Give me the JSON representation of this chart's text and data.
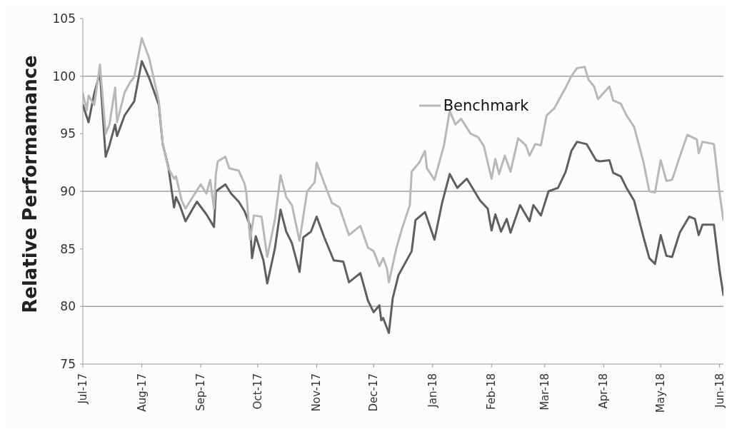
{
  "chart_data": {
    "type": "line",
    "ylabel": "Relative Performamance",
    "xlim": [
      "2017-07-01",
      "2018-06-03"
    ],
    "ylim": [
      75,
      105
    ],
    "yticks": [
      75,
      80,
      85,
      90,
      95,
      100,
      105
    ],
    "xticks": [
      {
        "value": "2017-07-01",
        "label": "Jul-17"
      },
      {
        "value": "2017-08-01",
        "label": "Aug-17"
      },
      {
        "value": "2017-09-01",
        "label": "Sep-17"
      },
      {
        "value": "2017-10-01",
        "label": "Oct-17"
      },
      {
        "value": "2017-11-01",
        "label": "Nov-17"
      },
      {
        "value": "2017-12-01",
        "label": "Dec-17"
      },
      {
        "value": "2018-01-01",
        "label": "Jan-18"
      },
      {
        "value": "2018-02-01",
        "label": "Feb-18"
      },
      {
        "value": "2018-03-01",
        "label": "Mar-18"
      },
      {
        "value": "2018-04-01",
        "label": "Apr-18"
      },
      {
        "value": "2018-05-01",
        "label": "May-18"
      },
      {
        "value": "2018-06-01",
        "label": "Jun-18"
      }
    ],
    "ref_lines": [
      {
        "axis": "y",
        "value": 80,
        "color": "#a0a0a0"
      },
      {
        "axis": "y",
        "value": 90,
        "color": "#a0a0a0"
      },
      {
        "axis": "y",
        "value": 100,
        "color": "#a0a0a0"
      }
    ],
    "legend": "top",
    "marker": "none",
    "line_style": "solid",
    "series": [
      {
        "color": "#5f5f5f",
        "x": [
          "2017-07-01",
          "2017-07-04",
          "2017-07-07",
          "2017-07-10",
          "2017-07-13",
          "2017-07-15",
          "2017-07-18",
          "2017-07-19",
          "2017-07-23",
          "2017-07-28",
          "2017-08-01",
          "2017-08-05",
          "2017-08-10",
          "2017-08-12",
          "2017-08-15",
          "2017-08-18",
          "2017-08-19",
          "2017-08-21",
          "2017-08-24",
          "2017-08-30",
          "2017-09-04",
          "2017-09-08",
          "2017-09-09",
          "2017-09-14",
          "2017-09-17",
          "2017-09-21",
          "2017-09-24",
          "2017-09-27",
          "2017-09-28",
          "2017-09-30",
          "2017-10-04",
          "2017-10-06",
          "2017-10-10",
          "2017-10-13",
          "2017-10-16",
          "2017-10-19",
          "2017-10-23",
          "2017-10-25",
          "2017-10-29",
          "2017-11-01",
          "2017-11-05",
          "2017-11-10",
          "2017-11-15",
          "2017-11-18",
          "2017-11-24",
          "2017-11-28",
          "2017-12-01",
          "2017-12-04",
          "2017-12-05",
          "2017-12-06",
          "2017-12-09",
          "2017-12-11",
          "2017-12-14",
          "2017-12-21",
          "2017-12-23",
          "2017-12-28",
          "2018-01-02",
          "2018-01-06",
          "2018-01-10",
          "2018-01-14",
          "2018-01-19",
          "2018-01-26",
          "2018-01-30",
          "2018-02-01",
          "2018-02-03",
          "2018-02-06",
          "2018-02-09",
          "2018-02-11",
          "2018-02-16",
          "2018-02-21",
          "2018-02-23",
          "2018-02-27",
          "2018-03-03",
          "2018-03-08",
          "2018-03-12",
          "2018-03-15",
          "2018-03-18",
          "2018-03-23",
          "2018-03-28",
          "2018-03-30",
          "2018-04-04",
          "2018-04-06",
          "2018-04-10",
          "2018-04-13",
          "2018-04-17",
          "2018-04-22",
          "2018-04-25",
          "2018-04-28",
          "2018-05-01",
          "2018-05-04",
          "2018-05-07",
          "2018-05-11",
          "2018-05-16",
          "2018-05-19",
          "2018-05-21",
          "2018-05-23",
          "2018-05-29",
          "2018-06-01",
          "2018-06-03"
        ],
        "values": [
          97.5,
          96.0,
          98.5,
          100.3,
          93.0,
          94.0,
          95.8,
          94.8,
          96.6,
          97.8,
          101.3,
          99.8,
          97.5,
          94.1,
          92.1,
          88.6,
          89.5,
          88.8,
          87.4,
          89.1,
          88.0,
          86.9,
          90.0,
          90.6,
          89.8,
          89.1,
          88.3,
          87.0,
          84.2,
          86.1,
          84.0,
          82.0,
          85.0,
          88.4,
          86.5,
          85.5,
          83.0,
          86.0,
          86.5,
          87.8,
          86.0,
          84.0,
          83.9,
          82.1,
          82.9,
          80.5,
          79.5,
          80.1,
          78.8,
          79.0,
          77.7,
          80.7,
          82.7,
          84.8,
          87.5,
          88.2,
          85.8,
          89.0,
          91.5,
          90.3,
          91.1,
          89.2,
          88.5,
          86.6,
          88.0,
          86.5,
          87.6,
          86.4,
          88.8,
          87.4,
          88.8,
          87.9,
          90.0,
          90.3,
          91.7,
          93.5,
          94.3,
          94.1,
          92.7,
          92.6,
          92.7,
          91.6,
          91.3,
          90.3,
          89.2,
          86.0,
          84.2,
          83.7,
          86.2,
          84.4,
          84.3,
          86.4,
          87.8,
          87.6,
          86.2,
          87.1,
          87.1,
          83.1,
          81.0
        ]
      },
      {
        "name": "Benchmark",
        "color": "#b8b8b8",
        "x": [
          "2017-07-01",
          "2017-07-03",
          "2017-07-04",
          "2017-07-07",
          "2017-07-10",
          "2017-07-13",
          "2017-07-15",
          "2017-07-18",
          "2017-07-19",
          "2017-07-23",
          "2017-07-26",
          "2017-07-28",
          "2017-08-01",
          "2017-08-05",
          "2017-08-10",
          "2017-08-12",
          "2017-08-15",
          "2017-08-18",
          "2017-08-19",
          "2017-08-22",
          "2017-08-24",
          "2017-09-01",
          "2017-09-04",
          "2017-09-06",
          "2017-09-08",
          "2017-09-09",
          "2017-09-10",
          "2017-09-14",
          "2017-09-16",
          "2017-09-21",
          "2017-09-24",
          "2017-09-25",
          "2017-09-27",
          "2017-09-29",
          "2017-10-03",
          "2017-10-06",
          "2017-10-10",
          "2017-10-13",
          "2017-10-16",
          "2017-10-19",
          "2017-10-23",
          "2017-10-27",
          "2017-10-31",
          "2017-11-01",
          "2017-11-05",
          "2017-11-09",
          "2017-11-13",
          "2017-11-18",
          "2017-11-24",
          "2017-11-28",
          "2017-12-01",
          "2017-12-04",
          "2017-12-06",
          "2017-12-08",
          "2017-12-09",
          "2017-12-13",
          "2017-12-16",
          "2017-12-20",
          "2017-12-21",
          "2017-12-25",
          "2017-12-28",
          "2017-12-29",
          "2018-01-02",
          "2018-01-07",
          "2018-01-10",
          "2018-01-13",
          "2018-01-16",
          "2018-01-21",
          "2018-01-25",
          "2018-01-28",
          "2018-02-01",
          "2018-02-03",
          "2018-02-05",
          "2018-02-08",
          "2018-02-11",
          "2018-02-15",
          "2018-02-19",
          "2018-02-21",
          "2018-02-24",
          "2018-02-27",
          "2018-03-02",
          "2018-03-06",
          "2018-03-12",
          "2018-03-15",
          "2018-03-18",
          "2018-03-22",
          "2018-03-24",
          "2018-03-27",
          "2018-03-29",
          "2018-04-04",
          "2018-04-06",
          "2018-04-10",
          "2018-04-13",
          "2018-04-17",
          "2018-04-22",
          "2018-04-25",
          "2018-04-28",
          "2018-05-01",
          "2018-05-04",
          "2018-05-07",
          "2018-05-11",
          "2018-05-15",
          "2018-05-20",
          "2018-05-21",
          "2018-05-23",
          "2018-05-29",
          "2018-06-01",
          "2018-06-03"
        ],
        "values": [
          98.5,
          97.0,
          98.3,
          97.5,
          101.0,
          95.0,
          95.8,
          99.0,
          96.0,
          98.6,
          99.5,
          99.9,
          103.3,
          101.5,
          97.8,
          94.1,
          92.0,
          91.1,
          91.3,
          89.2,
          88.5,
          90.6,
          89.8,
          91.0,
          88.5,
          91.5,
          92.6,
          93.0,
          92.0,
          91.8,
          90.7,
          89.9,
          85.8,
          87.9,
          87.8,
          84.3,
          87.5,
          91.4,
          89.5,
          88.8,
          85.7,
          90.0,
          90.8,
          92.5,
          90.7,
          89.0,
          88.6,
          86.2,
          87.0,
          85.1,
          84.8,
          83.5,
          84.2,
          83.3,
          82.1,
          85.1,
          86.8,
          88.8,
          91.7,
          92.5,
          93.5,
          92.0,
          91.0,
          94.0,
          97.0,
          95.8,
          96.3,
          95.0,
          94.7,
          93.9,
          91.1,
          92.8,
          91.5,
          93.1,
          91.7,
          94.6,
          94.0,
          93.1,
          94.1,
          94.0,
          96.6,
          97.2,
          99.0,
          100.0,
          100.7,
          100.8,
          99.7,
          99.1,
          98.0,
          99.1,
          97.9,
          97.6,
          96.6,
          95.6,
          92.5,
          90.0,
          89.9,
          92.7,
          90.9,
          91.0,
          93.0,
          94.9,
          94.5,
          93.3,
          94.3,
          94.1,
          89.8,
          87.5
        ]
      }
    ]
  }
}
